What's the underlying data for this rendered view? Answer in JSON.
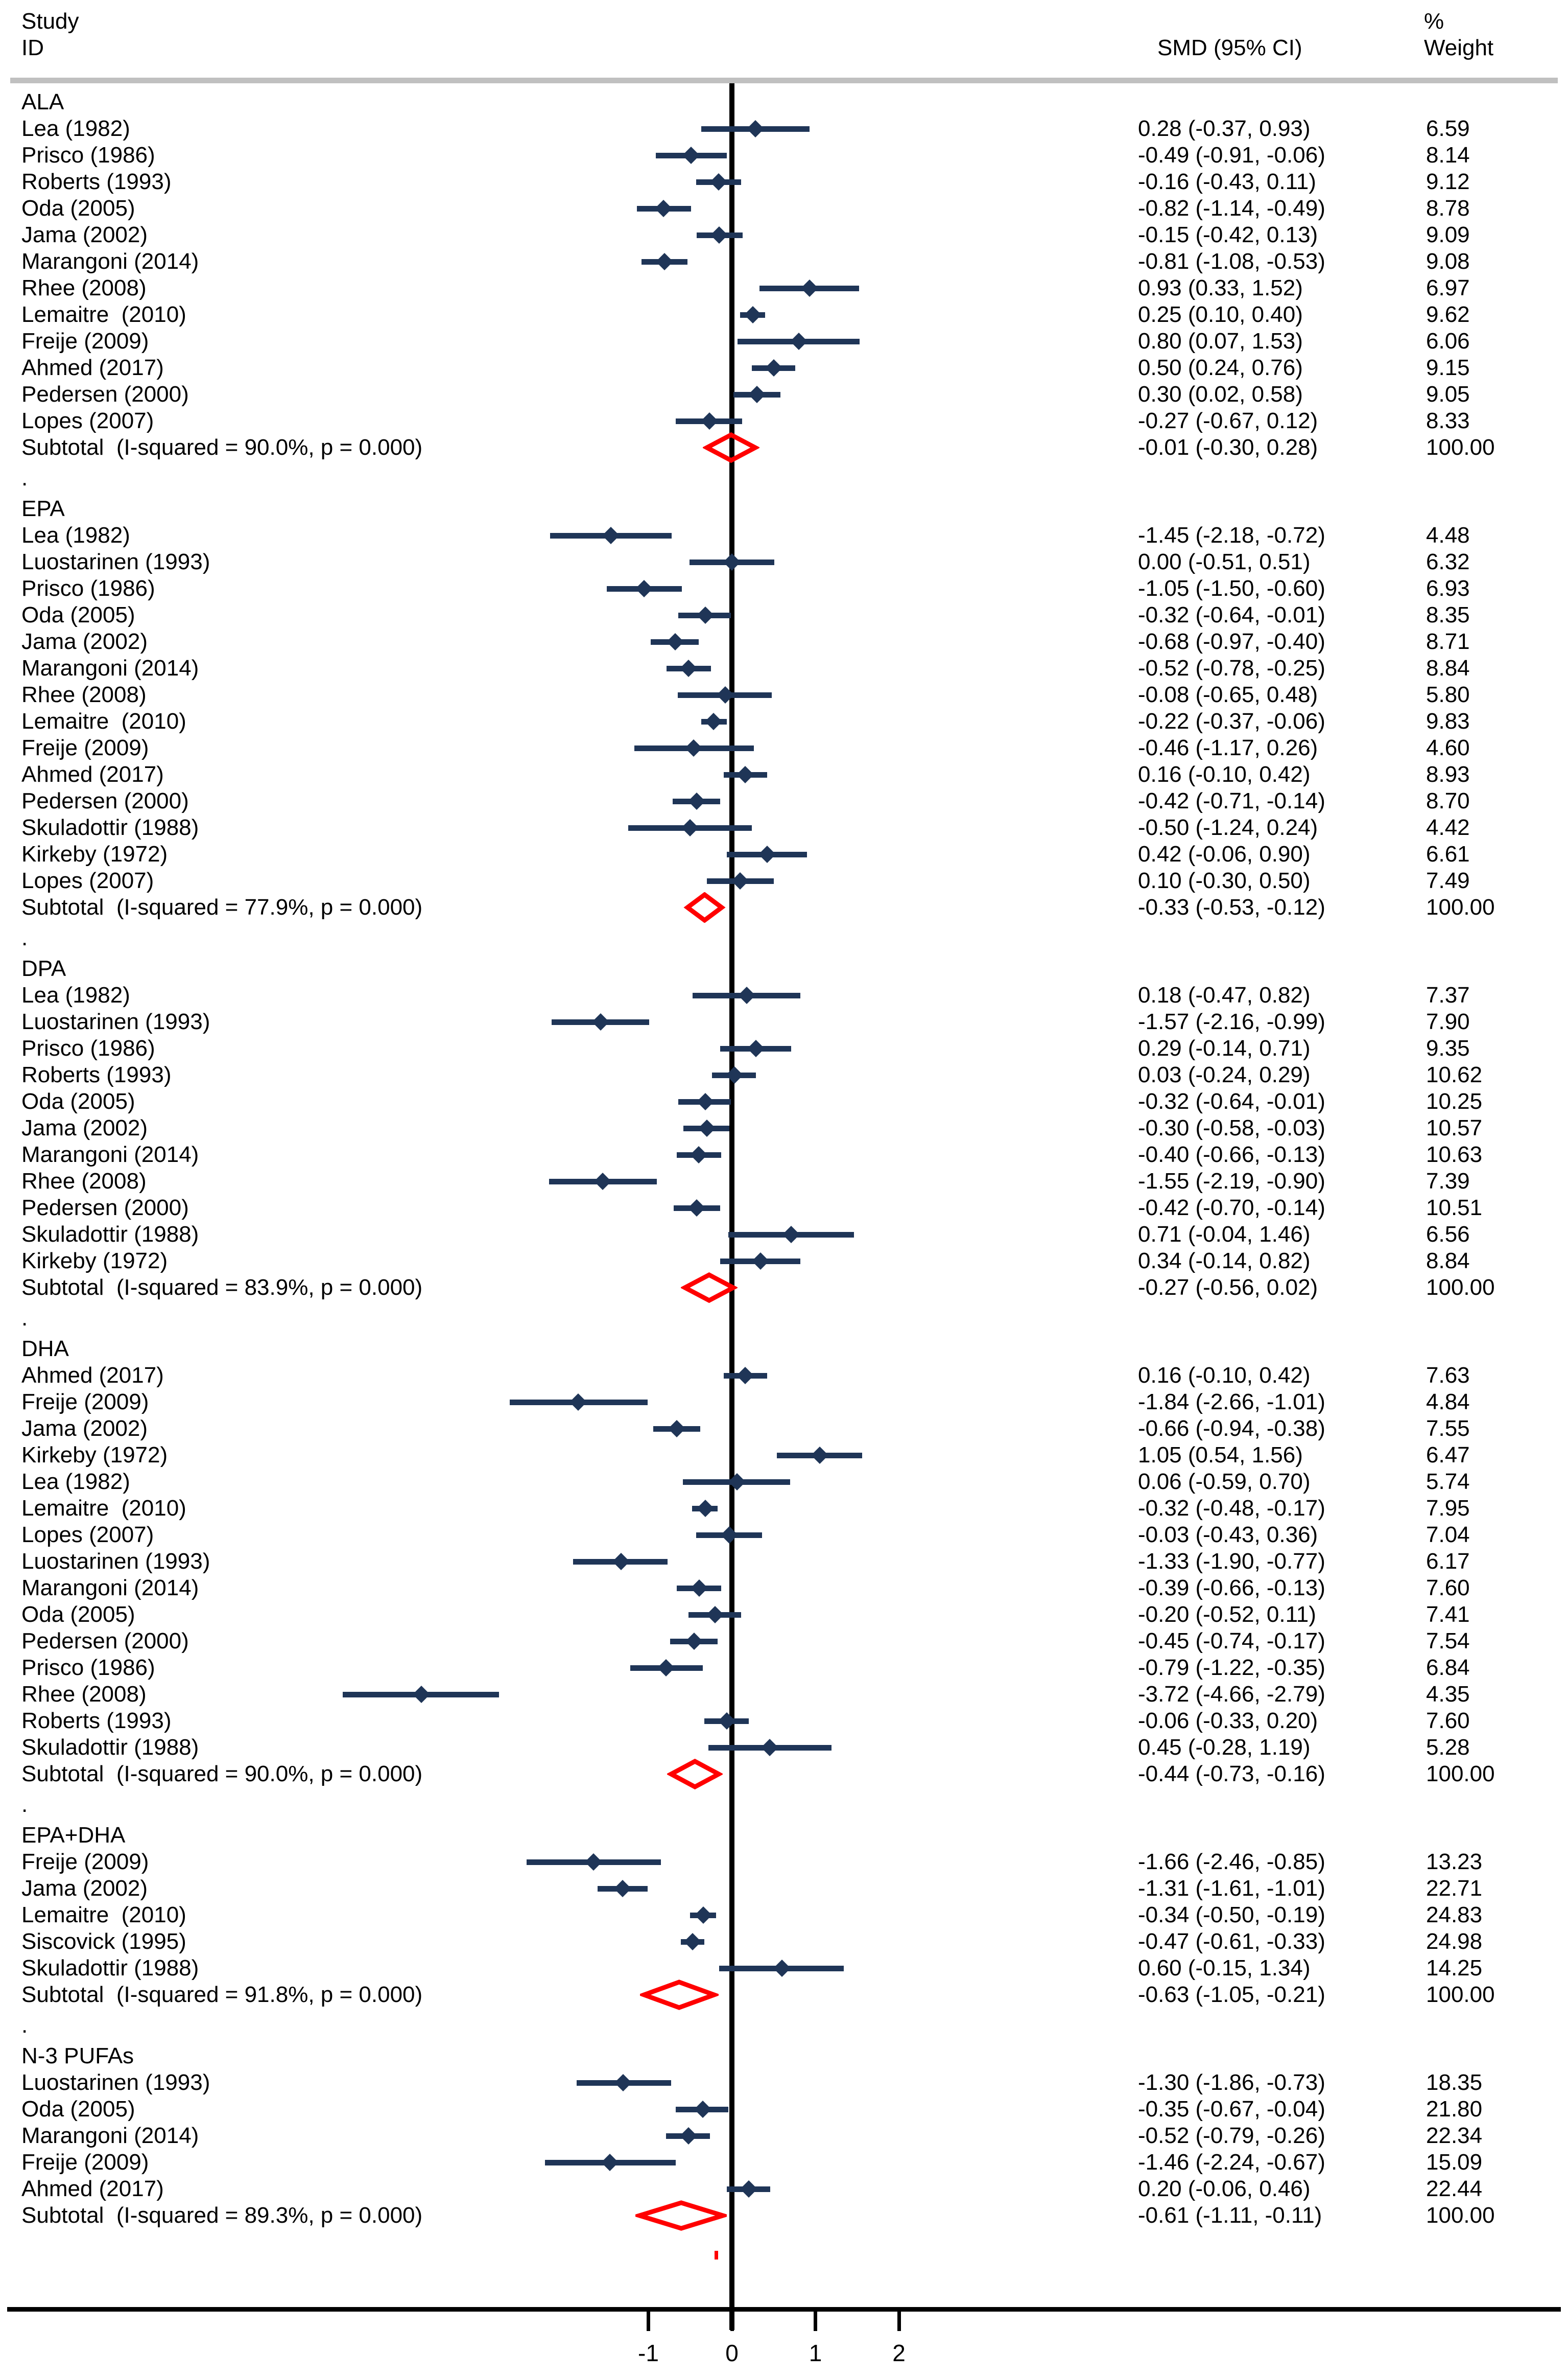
{
  "header": {
    "study": "Study",
    "id": "ID",
    "smd_ci": "SMD (95% CI)",
    "percent": "%",
    "weight": "Weight"
  },
  "axis": {
    "ticks": [
      {
        "value": -1,
        "label": "-1"
      },
      {
        "value": 0,
        "label": "0"
      },
      {
        "value": 1,
        "label": "1"
      },
      {
        "value": 2,
        "label": "2"
      }
    ]
  },
  "separator": ".",
  "colors": {
    "marker_navy": "#1f3557",
    "subtotal_red": "#ff0000",
    "band_gray": "#c0c0c0",
    "text": "#000000",
    "axis_black": "#000000"
  },
  "chart_data": {
    "type": "forest",
    "title": "",
    "effect_measure": "SMD",
    "x_axis_ticks": [
      -1,
      0,
      1,
      2
    ],
    "legend_position": "none",
    "grid": false,
    "columns": {
      "left": "Study ID",
      "mid": "SMD (95% CI)",
      "right": "% Weight"
    },
    "groups": [
      {
        "name": "ALA",
        "i_squared": "90.0%",
        "p": "0.000",
        "studies": [
          {
            "label": "Lea (1982)",
            "smd": 0.28,
            "lo": -0.37,
            "hi": 0.93,
            "smd_text": "0.28 (-0.37, 0.93)",
            "weight_text": "6.59"
          },
          {
            "label": "Prisco (1986)",
            "smd": -0.49,
            "lo": -0.91,
            "hi": -0.06,
            "smd_text": "-0.49 (-0.91, -0.06)",
            "weight_text": "8.14"
          },
          {
            "label": "Roberts (1993)",
            "smd": -0.16,
            "lo": -0.43,
            "hi": 0.11,
            "smd_text": "-0.16 (-0.43, 0.11)",
            "weight_text": "9.12"
          },
          {
            "label": "Oda (2005)",
            "smd": -0.82,
            "lo": -1.14,
            "hi": -0.49,
            "smd_text": "-0.82 (-1.14, -0.49)",
            "weight_text": "8.78"
          },
          {
            "label": "Jama (2002)",
            "smd": -0.15,
            "lo": -0.42,
            "hi": 0.13,
            "smd_text": "-0.15 (-0.42, 0.13)",
            "weight_text": "9.09"
          },
          {
            "label": "Marangoni (2014)",
            "smd": -0.81,
            "lo": -1.08,
            "hi": -0.53,
            "smd_text": "-0.81 (-1.08, -0.53)",
            "weight_text": "9.08"
          },
          {
            "label": "Rhee (2008)",
            "smd": 0.93,
            "lo": 0.33,
            "hi": 1.52,
            "smd_text": "0.93 (0.33, 1.52)",
            "weight_text": "6.97"
          },
          {
            "label": "Lemaitre  (2010)",
            "smd": 0.25,
            "lo": 0.1,
            "hi": 0.4,
            "smd_text": "0.25 (0.10, 0.40)",
            "weight_text": "9.62"
          },
          {
            "label": "Freije (2009)",
            "smd": 0.8,
            "lo": 0.07,
            "hi": 1.53,
            "smd_text": "0.80 (0.07, 1.53)",
            "weight_text": "6.06"
          },
          {
            "label": "Ahmed (2017)",
            "smd": 0.5,
            "lo": 0.24,
            "hi": 0.76,
            "smd_text": "0.50 (0.24, 0.76)",
            "weight_text": "9.15"
          },
          {
            "label": "Pedersen (2000)",
            "smd": 0.3,
            "lo": 0.02,
            "hi": 0.58,
            "smd_text": "0.30 (0.02, 0.58)",
            "weight_text": "9.05"
          },
          {
            "label": "Lopes (2007)",
            "smd": -0.27,
            "lo": -0.67,
            "hi": 0.12,
            "smd_text": "-0.27 (-0.67, 0.12)",
            "weight_text": "8.33"
          }
        ],
        "subtotal": {
          "label": "Subtotal  (I-squared = 90.0%, p = 0.000)",
          "smd": -0.01,
          "lo": -0.3,
          "hi": 0.28,
          "smd_text": "-0.01 (-0.30, 0.28)",
          "weight_text": "100.00"
        }
      },
      {
        "name": "EPA",
        "i_squared": "77.9%",
        "p": "0.000",
        "studies": [
          {
            "label": "Lea (1982)",
            "smd": -1.45,
            "lo": -2.18,
            "hi": -0.72,
            "smd_text": "-1.45 (-2.18, -0.72)",
            "weight_text": "4.48"
          },
          {
            "label": "Luostarinen (1993)",
            "smd": 0.0,
            "lo": -0.51,
            "hi": 0.51,
            "smd_text": "0.00 (-0.51, 0.51)",
            "weight_text": "6.32"
          },
          {
            "label": "Prisco (1986)",
            "smd": -1.05,
            "lo": -1.5,
            "hi": -0.6,
            "smd_text": "-1.05 (-1.50, -0.60)",
            "weight_text": "6.93"
          },
          {
            "label": "Oda (2005)",
            "smd": -0.32,
            "lo": -0.64,
            "hi": -0.01,
            "smd_text": "-0.32 (-0.64, -0.01)",
            "weight_text": "8.35"
          },
          {
            "label": "Jama (2002)",
            "smd": -0.68,
            "lo": -0.97,
            "hi": -0.4,
            "smd_text": "-0.68 (-0.97, -0.40)",
            "weight_text": "8.71"
          },
          {
            "label": "Marangoni (2014)",
            "smd": -0.52,
            "lo": -0.78,
            "hi": -0.25,
            "smd_text": "-0.52 (-0.78, -0.25)",
            "weight_text": "8.84"
          },
          {
            "label": "Rhee (2008)",
            "smd": -0.08,
            "lo": -0.65,
            "hi": 0.48,
            "smd_text": "-0.08 (-0.65, 0.48)",
            "weight_text": "5.80"
          },
          {
            "label": "Lemaitre  (2010)",
            "smd": -0.22,
            "lo": -0.37,
            "hi": -0.06,
            "smd_text": "-0.22 (-0.37, -0.06)",
            "weight_text": "9.83"
          },
          {
            "label": "Freije (2009)",
            "smd": -0.46,
            "lo": -1.17,
            "hi": 0.26,
            "smd_text": "-0.46 (-1.17, 0.26)",
            "weight_text": "4.60"
          },
          {
            "label": "Ahmed (2017)",
            "smd": 0.16,
            "lo": -0.1,
            "hi": 0.42,
            "smd_text": "0.16 (-0.10, 0.42)",
            "weight_text": "8.93"
          },
          {
            "label": "Pedersen (2000)",
            "smd": -0.42,
            "lo": -0.71,
            "hi": -0.14,
            "smd_text": "-0.42 (-0.71, -0.14)",
            "weight_text": "8.70"
          },
          {
            "label": "Skuladottir (1988)",
            "smd": -0.5,
            "lo": -1.24,
            "hi": 0.24,
            "smd_text": "-0.50 (-1.24, 0.24)",
            "weight_text": "4.42"
          },
          {
            "label": "Kirkeby (1972)",
            "smd": 0.42,
            "lo": -0.06,
            "hi": 0.9,
            "smd_text": "0.42 (-0.06, 0.90)",
            "weight_text": "6.61"
          },
          {
            "label": "Lopes (2007)",
            "smd": 0.1,
            "lo": -0.3,
            "hi": 0.5,
            "smd_text": "0.10 (-0.30, 0.50)",
            "weight_text": "7.49"
          }
        ],
        "subtotal": {
          "label": "Subtotal  (I-squared = 77.9%, p = 0.000)",
          "smd": -0.33,
          "lo": -0.53,
          "hi": -0.12,
          "smd_text": "-0.33 (-0.53, -0.12)",
          "weight_text": "100.00"
        }
      },
      {
        "name": "DPA",
        "i_squared": "83.9%",
        "p": "0.000",
        "studies": [
          {
            "label": "Lea (1982)",
            "smd": 0.18,
            "lo": -0.47,
            "hi": 0.82,
            "smd_text": "0.18 (-0.47, 0.82)",
            "weight_text": "7.37"
          },
          {
            "label": "Luostarinen (1993)",
            "smd": -1.57,
            "lo": -2.16,
            "hi": -0.99,
            "smd_text": "-1.57 (-2.16, -0.99)",
            "weight_text": "7.90"
          },
          {
            "label": "Prisco (1986)",
            "smd": 0.29,
            "lo": -0.14,
            "hi": 0.71,
            "smd_text": "0.29 (-0.14, 0.71)",
            "weight_text": "9.35"
          },
          {
            "label": "Roberts (1993)",
            "smd": 0.03,
            "lo": -0.24,
            "hi": 0.29,
            "smd_text": "0.03 (-0.24, 0.29)",
            "weight_text": "10.62"
          },
          {
            "label": "Oda (2005)",
            "smd": -0.32,
            "lo": -0.64,
            "hi": -0.01,
            "smd_text": "-0.32 (-0.64, -0.01)",
            "weight_text": "10.25"
          },
          {
            "label": "Jama (2002)",
            "smd": -0.3,
            "lo": -0.58,
            "hi": -0.03,
            "smd_text": "-0.30 (-0.58, -0.03)",
            "weight_text": "10.57"
          },
          {
            "label": "Marangoni (2014)",
            "smd": -0.4,
            "lo": -0.66,
            "hi": -0.13,
            "smd_text": "-0.40 (-0.66, -0.13)",
            "weight_text": "10.63"
          },
          {
            "label": "Rhee (2008)",
            "smd": -1.55,
            "lo": -2.19,
            "hi": -0.9,
            "smd_text": "-1.55 (-2.19, -0.90)",
            "weight_text": "7.39"
          },
          {
            "label": "Pedersen (2000)",
            "smd": -0.42,
            "lo": -0.7,
            "hi": -0.14,
            "smd_text": "-0.42 (-0.70, -0.14)",
            "weight_text": "10.51"
          },
          {
            "label": "Skuladottir (1988)",
            "smd": 0.71,
            "lo": -0.04,
            "hi": 1.46,
            "smd_text": "0.71 (-0.04, 1.46)",
            "weight_text": "6.56"
          },
          {
            "label": "Kirkeby (1972)",
            "smd": 0.34,
            "lo": -0.14,
            "hi": 0.82,
            "smd_text": "0.34 (-0.14, 0.82)",
            "weight_text": "8.84"
          }
        ],
        "subtotal": {
          "label": "Subtotal  (I-squared = 83.9%, p = 0.000)",
          "smd": -0.27,
          "lo": -0.56,
          "hi": 0.02,
          "smd_text": "-0.27 (-0.56, 0.02)",
          "weight_text": "100.00"
        }
      },
      {
        "name": "DHA",
        "i_squared": "90.0%",
        "p": "0.000",
        "studies": [
          {
            "label": "Ahmed (2017)",
            "smd": 0.16,
            "lo": -0.1,
            "hi": 0.42,
            "smd_text": "0.16 (-0.10, 0.42)",
            "weight_text": "7.63"
          },
          {
            "label": "Freije (2009)",
            "smd": -1.84,
            "lo": -2.66,
            "hi": -1.01,
            "smd_text": "-1.84 (-2.66, -1.01)",
            "weight_text": "4.84"
          },
          {
            "label": "Jama (2002)",
            "smd": -0.66,
            "lo": -0.94,
            "hi": -0.38,
            "smd_text": "-0.66 (-0.94, -0.38)",
            "weight_text": "7.55"
          },
          {
            "label": "Kirkeby (1972)",
            "smd": 1.05,
            "lo": 0.54,
            "hi": 1.56,
            "smd_text": "1.05 (0.54, 1.56)",
            "weight_text": "6.47"
          },
          {
            "label": "Lea (1982)",
            "smd": 0.06,
            "lo": -0.59,
            "hi": 0.7,
            "smd_text": "0.06 (-0.59, 0.70)",
            "weight_text": "5.74"
          },
          {
            "label": "Lemaitre  (2010)",
            "smd": -0.32,
            "lo": -0.48,
            "hi": -0.17,
            "smd_text": "-0.32 (-0.48, -0.17)",
            "weight_text": "7.95"
          },
          {
            "label": "Lopes (2007)",
            "smd": -0.03,
            "lo": -0.43,
            "hi": 0.36,
            "smd_text": "-0.03 (-0.43, 0.36)",
            "weight_text": "7.04"
          },
          {
            "label": "Luostarinen (1993)",
            "smd": -1.33,
            "lo": -1.9,
            "hi": -0.77,
            "smd_text": "-1.33 (-1.90, -0.77)",
            "weight_text": "6.17"
          },
          {
            "label": "Marangoni (2014)",
            "smd": -0.39,
            "lo": -0.66,
            "hi": -0.13,
            "smd_text": "-0.39 (-0.66, -0.13)",
            "weight_text": "7.60"
          },
          {
            "label": "Oda (2005)",
            "smd": -0.2,
            "lo": -0.52,
            "hi": 0.11,
            "smd_text": "-0.20 (-0.52, 0.11)",
            "weight_text": "7.41"
          },
          {
            "label": "Pedersen (2000)",
            "smd": -0.45,
            "lo": -0.74,
            "hi": -0.17,
            "smd_text": "-0.45 (-0.74, -0.17)",
            "weight_text": "7.54"
          },
          {
            "label": "Prisco (1986)",
            "smd": -0.79,
            "lo": -1.22,
            "hi": -0.35,
            "smd_text": "-0.79 (-1.22, -0.35)",
            "weight_text": "6.84"
          },
          {
            "label": "Rhee (2008)",
            "smd": -3.72,
            "lo": -4.66,
            "hi": -2.79,
            "smd_text": "-3.72 (-4.66, -2.79)",
            "weight_text": "4.35"
          },
          {
            "label": "Roberts (1993)",
            "smd": -0.06,
            "lo": -0.33,
            "hi": 0.2,
            "smd_text": "-0.06 (-0.33, 0.20)",
            "weight_text": "7.60"
          },
          {
            "label": "Skuladottir (1988)",
            "smd": 0.45,
            "lo": -0.28,
            "hi": 1.19,
            "smd_text": "0.45 (-0.28, 1.19)",
            "weight_text": "5.28"
          }
        ],
        "subtotal": {
          "label": "Subtotal  (I-squared = 90.0%, p = 0.000)",
          "smd": -0.44,
          "lo": -0.73,
          "hi": -0.16,
          "smd_text": "-0.44 (-0.73, -0.16)",
          "weight_text": "100.00"
        }
      },
      {
        "name": "EPA+DHA",
        "i_squared": "91.8%",
        "p": "0.000",
        "studies": [
          {
            "label": "Freije (2009)",
            "smd": -1.66,
            "lo": -2.46,
            "hi": -0.85,
            "smd_text": "-1.66 (-2.46, -0.85)",
            "weight_text": "13.23"
          },
          {
            "label": "Jama (2002)",
            "smd": -1.31,
            "lo": -1.61,
            "hi": -1.01,
            "smd_text": "-1.31 (-1.61, -1.01)",
            "weight_text": "22.71"
          },
          {
            "label": "Lemaitre  (2010)",
            "smd": -0.34,
            "lo": -0.5,
            "hi": -0.19,
            "smd_text": "-0.34 (-0.50, -0.19)",
            "weight_text": "24.83"
          },
          {
            "label": "Siscovick (1995)",
            "smd": -0.47,
            "lo": -0.61,
            "hi": -0.33,
            "smd_text": "-0.47 (-0.61, -0.33)",
            "weight_text": "24.98"
          },
          {
            "label": "Skuladottir (1988)",
            "smd": 0.6,
            "lo": -0.15,
            "hi": 1.34,
            "smd_text": "0.60 (-0.15, 1.34)",
            "weight_text": "14.25"
          }
        ],
        "subtotal": {
          "label": "Subtotal  (I-squared = 91.8%, p = 0.000)",
          "smd": -0.63,
          "lo": -1.05,
          "hi": -0.21,
          "smd_text": "-0.63 (-1.05, -0.21)",
          "weight_text": "100.00"
        }
      },
      {
        "name": "N-3 PUFAs",
        "i_squared": "89.3%",
        "p": "0.000",
        "studies": [
          {
            "label": "Luostarinen (1993)",
            "smd": -1.3,
            "lo": -1.86,
            "hi": -0.73,
            "smd_text": "-1.30 (-1.86, -0.73)",
            "weight_text": "18.35"
          },
          {
            "label": "Oda (2005)",
            "smd": -0.35,
            "lo": -0.67,
            "hi": -0.04,
            "smd_text": "-0.35 (-0.67, -0.04)",
            "weight_text": "21.80"
          },
          {
            "label": "Marangoni (2014)",
            "smd": -0.52,
            "lo": -0.79,
            "hi": -0.26,
            "smd_text": "-0.52 (-0.79, -0.26)",
            "weight_text": "22.34"
          },
          {
            "label": "Freije (2009)",
            "smd": -1.46,
            "lo": -2.24,
            "hi": -0.67,
            "smd_text": "-1.46 (-2.24, -0.67)",
            "weight_text": "15.09"
          },
          {
            "label": "Ahmed (2017)",
            "smd": 0.2,
            "lo": -0.06,
            "hi": 0.46,
            "smd_text": "0.20 (-0.06, 0.46)",
            "weight_text": "22.44"
          }
        ],
        "subtotal": {
          "label": "Subtotal  (I-squared = 89.3%, p = 0.000)",
          "smd": -0.61,
          "lo": -1.11,
          "hi": -0.11,
          "smd_text": "-0.61 (-1.11, -0.11)",
          "weight_text": "100.00"
        }
      }
    ]
  }
}
